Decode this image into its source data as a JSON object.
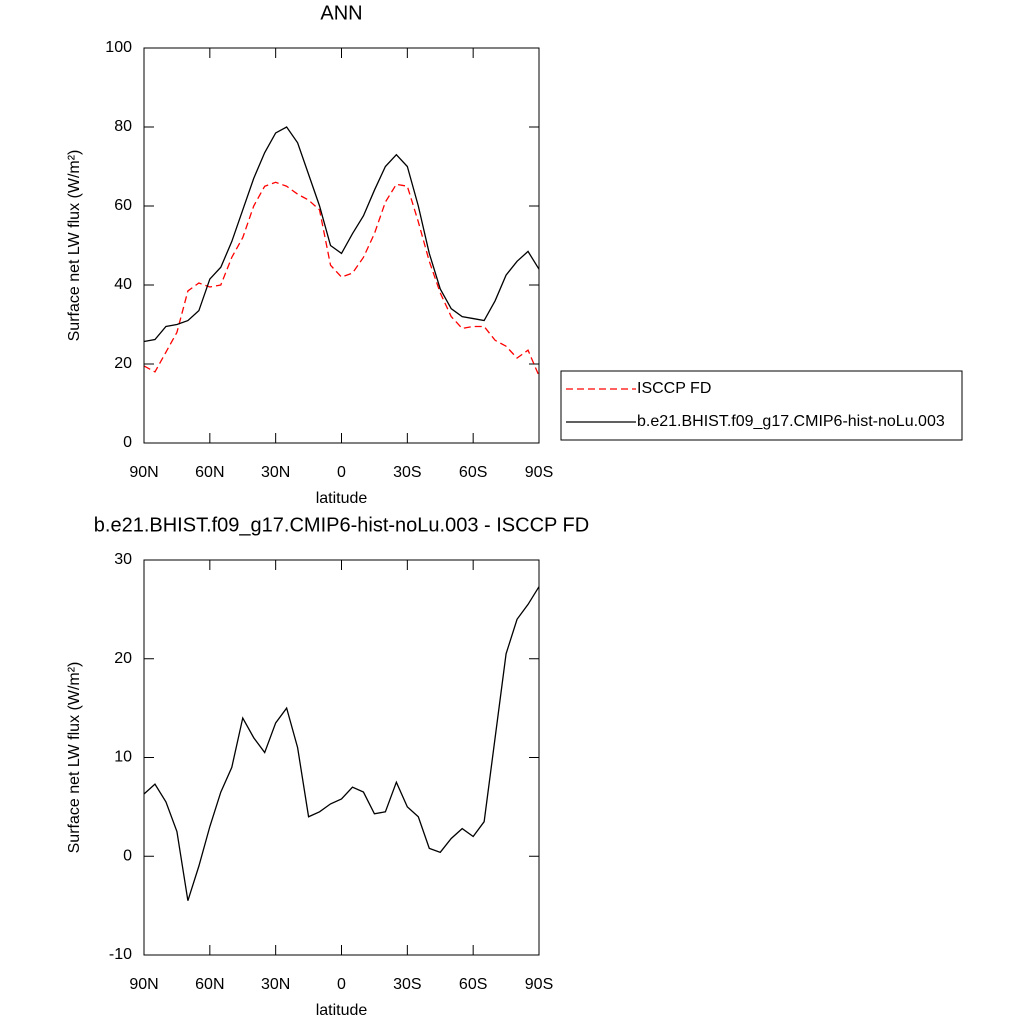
{
  "chart_data": [
    {
      "type": "line",
      "title": "ANN",
      "xlabel": "latitude",
      "ylabel": "Surface net LW flux (W/m²)",
      "x": [
        90,
        85,
        80,
        75,
        70,
        65,
        60,
        55,
        50,
        45,
        40,
        35,
        30,
        25,
        20,
        15,
        10,
        5,
        0,
        -5,
        -10,
        -15,
        -20,
        -25,
        -30,
        -35,
        -40,
        -45,
        -50,
        -55,
        -60,
        -65,
        -70,
        -75,
        -80,
        -85,
        -90
      ],
      "series": [
        {
          "name": "ISCCP FD",
          "color": "#ff0000",
          "linestyle": "dashed",
          "values": [
            19.5,
            18,
            23,
            28,
            38.5,
            40.5,
            39.5,
            40,
            47,
            52,
            60,
            65,
            66,
            65,
            63,
            61.5,
            59,
            45,
            42,
            43,
            47,
            53,
            61,
            65.5,
            65,
            56,
            46,
            38,
            32,
            29,
            29.5,
            29.5,
            26,
            24.5,
            21.5,
            23.5,
            17
          ]
        },
        {
          "name": "b.e21.BHIST.f09_g17.CMIP6-hist-noLu.003",
          "color": "#000000",
          "linestyle": "solid",
          "values": [
            25.7,
            26.2,
            29.5,
            30,
            31,
            33.5,
            41.5,
            44.5,
            51,
            59,
            67,
            73.5,
            78.5,
            80,
            76,
            68,
            60,
            50,
            48,
            53,
            57.5,
            64,
            70,
            73,
            70,
            60,
            48,
            39,
            34,
            32,
            31.5,
            31,
            36,
            42.5,
            46,
            48.5,
            44
          ]
        }
      ],
      "xlim": [
        90,
        -90
      ],
      "xticks": [
        {
          "value": 90,
          "label": "90N"
        },
        {
          "value": 60,
          "label": "60N"
        },
        {
          "value": 30,
          "label": "30N"
        },
        0,
        {
          "value": -30,
          "label": "30S"
        },
        {
          "value": -60,
          "label": "60S"
        },
        {
          "value": -90,
          "label": "90S"
        }
      ],
      "ylim": [
        0,
        100
      ],
      "yticks": [
        0,
        20,
        40,
        60,
        80,
        100
      ],
      "legend": "outside-right"
    },
    {
      "type": "line",
      "title": "b.e21.BHIST.f09_g17.CMIP6-hist-noLu.003 - ISCCP FD",
      "xlabel": "latitude",
      "ylabel": "Surface net LW flux (W/m²)",
      "x": [
        90,
        85,
        80,
        75,
        70,
        65,
        60,
        55,
        50,
        45,
        40,
        35,
        30,
        25,
        20,
        15,
        10,
        5,
        0,
        -5,
        -10,
        -15,
        -20,
        -25,
        -30,
        -35,
        -40,
        -45,
        -50,
        -55,
        -60,
        -65,
        -70,
        -75,
        -80,
        -85,
        -90
      ],
      "series": [
        {
          "color": "#000000",
          "linestyle": "solid",
          "values": [
            6.3,
            7.3,
            5.5,
            2.5,
            -4.5,
            -1,
            3,
            6.5,
            9,
            14,
            12,
            10.5,
            13.5,
            15,
            11,
            4,
            4.5,
            5.3,
            5.8,
            7,
            6.5,
            4.3,
            4.5,
            7.5,
            5,
            4,
            0.8,
            0.4,
            1.8,
            2.8,
            2,
            3.5,
            12,
            20.5,
            24,
            25.5,
            27.3
          ]
        }
      ],
      "xlim": [
        90,
        -90
      ],
      "xticks": [
        {
          "value": 90,
          "label": "90N"
        },
        {
          "value": 60,
          "label": "60N"
        },
        {
          "value": 30,
          "label": "30N"
        },
        0,
        {
          "value": -30,
          "label": "30S"
        },
        {
          "value": -60,
          "label": "60S"
        },
        {
          "value": -90,
          "label": "90S"
        }
      ],
      "ylim": [
        -10,
        30
      ],
      "yticks": [
        -10,
        0,
        10,
        20,
        30
      ]
    }
  ]
}
